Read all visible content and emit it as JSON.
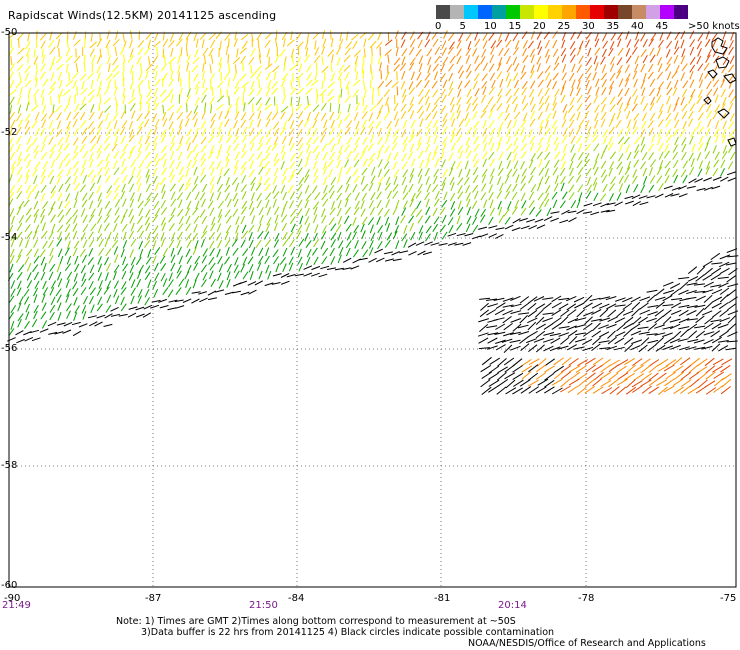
{
  "title": "Rapidscat Winds(12.5KM) 20141125 ascending",
  "legend": {
    "swatches": [
      "#4a4a4a",
      "#b4b4b4",
      "#00c8ff",
      "#0064ff",
      "#00a0a0",
      "#00c800",
      "#c8e600",
      "#ffff00",
      "#ffd200",
      "#ffa500",
      "#ff5a00",
      "#e60000",
      "#a00000",
      "#784628",
      "#c88c64",
      "#d2a0e6",
      "#b400ff",
      "#4b0082"
    ],
    "labels": [
      "0",
      "5",
      "10",
      "15",
      "20",
      "25",
      "30",
      "35",
      "40",
      "45",
      ">50 knots"
    ]
  },
  "map": {
    "lat_labels": [
      "-50",
      "-52",
      "-54",
      "-56",
      "-58",
      "-60"
    ],
    "lon_labels": [
      "-90",
      "-87",
      "-84",
      "-81",
      "-78",
      "-75"
    ],
    "times": [
      "21:49",
      "21:50",
      "20:14"
    ]
  },
  "notes": [
    "Note: 1) Times are GMT 2)Times along bottom correspond to measurement at ~50S",
    "3)Data buffer is 22 hrs from 20141125 4) Black circles indicate possible contamination"
  ],
  "credit": "NOAA/NESDIS/Office of Research and Applications",
  "colors": {
    "grid": "#555555",
    "coast": "#000000",
    "frame": "#000000"
  }
}
